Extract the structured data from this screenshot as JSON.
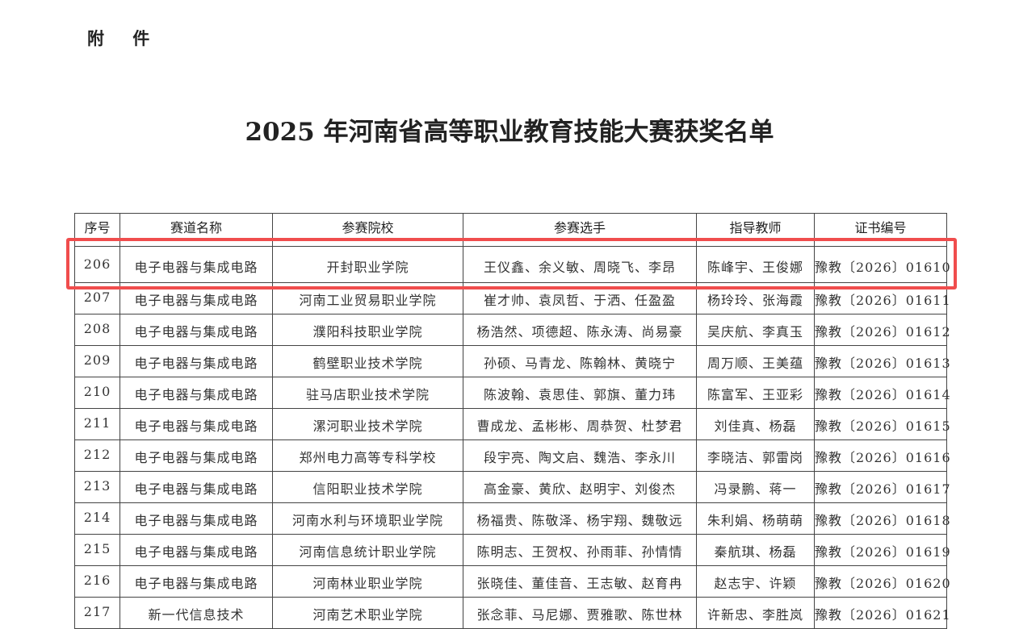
{
  "attachment_label": "附 件",
  "title": "2025 年河南省高等职业教育技能大赛获奖名单",
  "table": {
    "headers": [
      "序号",
      "赛道名称",
      "参赛院校",
      "参赛选手",
      "指导教师",
      "证书编号"
    ],
    "rows": [
      [
        "206",
        "电子电器与集成电路",
        "开封职业学院",
        "王仪鑫、余义敏、周晓飞、李昂",
        "陈峰宇、王俊娜",
        "豫教〔2026〕01610"
      ],
      [
        "207",
        "电子电器与集成电路",
        "河南工业贸易职业学院",
        "崔才帅、袁凤哲、于洒、任盈盈",
        "杨玲玲、张海霞",
        "豫教〔2026〕01611"
      ],
      [
        "208",
        "电子电器与集成电路",
        "濮阳科技职业学院",
        "杨浩然、项德超、陈永涛、尚易豪",
        "吴庆航、李真玉",
        "豫教〔2026〕01612"
      ],
      [
        "209",
        "电子电器与集成电路",
        "鹤壁职业技术学院",
        "孙硕、马青龙、陈翰林、黄晓宁",
        "周万顺、王美蕴",
        "豫教〔2026〕01613"
      ],
      [
        "210",
        "电子电器与集成电路",
        "驻马店职业技术学院",
        "陈波翰、袁思佳、郭旗、董力玮",
        "陈富军、王亚彩",
        "豫教〔2026〕01614"
      ],
      [
        "211",
        "电子电器与集成电路",
        "漯河职业技术学院",
        "曹成龙、孟彬彬、周恭贺、杜梦君",
        "刘佳真、杨磊",
        "豫教〔2026〕01615"
      ],
      [
        "212",
        "电子电器与集成电路",
        "郑州电力高等专科学校",
        "段宇亮、陶文启、魏浩、李永川",
        "李晓洁、郭雷岗",
        "豫教〔2026〕01616"
      ],
      [
        "213",
        "电子电器与集成电路",
        "信阳职业技术学院",
        "高金豪、黄欣、赵明宇、刘俊杰",
        "冯录鹏、蒋一",
        "豫教〔2026〕01617"
      ],
      [
        "214",
        "电子电器与集成电路",
        "河南水利与环境职业学院",
        "杨福贵、陈敬泽、杨宇翔、魏敬远",
        "朱利娟、杨萌萌",
        "豫教〔2026〕01618"
      ],
      [
        "215",
        "电子电器与集成电路",
        "河南信息统计职业学院",
        "陈明志、王贺权、孙雨菲、孙情情",
        "秦航琪、杨磊",
        "豫教〔2026〕01619"
      ],
      [
        "216",
        "电子电器与集成电路",
        "河南林业职业学院",
        "张晓佳、董佳音、王志敏、赵育冉",
        "赵志宇、许颖",
        "豫教〔2026〕01620"
      ],
      [
        "217",
        "新一代信息技术",
        "河南艺术职业学院",
        "张念菲、马尼娜、贾雅歌、陈世林",
        "许新忠、李胜岚",
        "豫教〔2026〕01621"
      ]
    ]
  },
  "highlight_color": "#f04d4d"
}
